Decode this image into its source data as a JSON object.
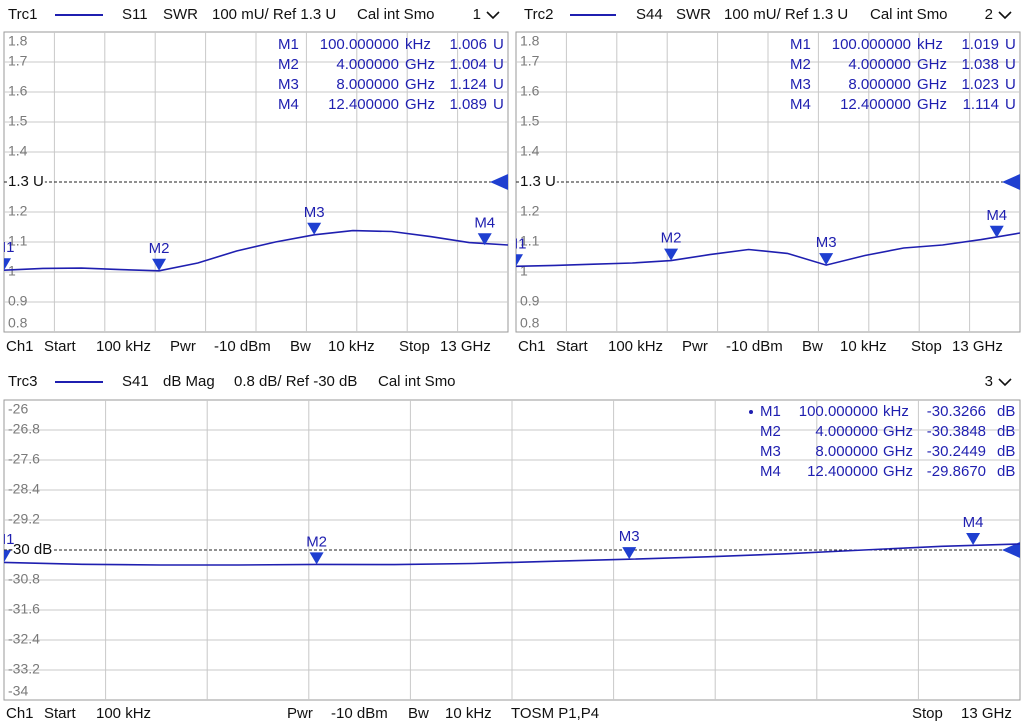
{
  "chart_data": [
    {
      "type": "line",
      "parameter": "S11",
      "format": "SWR",
      "scale": "100 mU/ Ref 1.3 U",
      "calibration": "Cal int Smo",
      "channel_number": "1",
      "x": [
        0.0001,
        1,
        2,
        3,
        4,
        5,
        6,
        7,
        8,
        9,
        10,
        11,
        12,
        13
      ],
      "xlim": [
        0.0001,
        13
      ],
      "ylim": [
        0.8,
        1.8
      ],
      "yticks": [
        0.8,
        0.9,
        1,
        1.1,
        1.2,
        {
          "value": 1.3,
          "label": "1.3 U"
        },
        1.4,
        1.5,
        1.6,
        1.7,
        1.8
      ],
      "grid": true,
      "series": [
        {
          "name": "Trc1",
          "color": "#1f1fb0",
          "values": [
            1.006,
            1.012,
            1.013,
            1.008,
            1.004,
            1.03,
            1.07,
            1.1,
            1.124,
            1.138,
            1.135,
            1.118,
            1.098,
            1.09
          ]
        }
      ],
      "markers": [
        {
          "name": "M1",
          "x": 0.0001,
          "x_label": "100.000000",
          "x_unit": "kHz",
          "value": 1.006,
          "unit": "U"
        },
        {
          "name": "M2",
          "x": 4,
          "x_label": "4.000000",
          "x_unit": "GHz",
          "value": 1.004,
          "unit": "U"
        },
        {
          "name": "M3",
          "x": 8,
          "x_label": "8.000000",
          "x_unit": "GHz",
          "value": 1.124,
          "unit": "U"
        },
        {
          "name": "M4",
          "x": 12.4,
          "x_label": "12.400000",
          "x_unit": "GHz",
          "value": 1.089,
          "unit": "U"
        }
      ],
      "footer": [
        "Ch1",
        "Start",
        "100 kHz",
        "Pwr",
        "-10 dBm",
        "Bw",
        "10 kHz",
        "Stop",
        "13 GHz"
      ]
    },
    {
      "type": "line",
      "parameter": "S44",
      "format": "SWR",
      "scale": "100 mU/ Ref 1.3 U",
      "calibration": "Cal int Smo",
      "channel_number": "2",
      "x": [
        0.0001,
        1,
        2,
        3,
        4,
        5,
        6,
        7,
        8,
        9,
        10,
        11,
        12,
        13
      ],
      "xlim": [
        0.0001,
        13
      ],
      "ylim": [
        0.8,
        1.8
      ],
      "yticks": [
        0.8,
        0.9,
        1,
        1.1,
        1.2,
        {
          "value": 1.3,
          "label": "1.3 U"
        },
        1.4,
        1.5,
        1.6,
        1.7,
        1.8
      ],
      "grid": true,
      "series": [
        {
          "name": "Trc2",
          "color": "#1f1fb0",
          "values": [
            1.019,
            1.022,
            1.026,
            1.03,
            1.038,
            1.058,
            1.075,
            1.062,
            1.023,
            1.055,
            1.08,
            1.09,
            1.108,
            1.13
          ]
        }
      ],
      "markers": [
        {
          "name": "M1",
          "x": 0.0001,
          "x_label": "100.000000",
          "x_unit": "kHz",
          "value": 1.019,
          "unit": "U"
        },
        {
          "name": "M2",
          "x": 4,
          "x_label": "4.000000",
          "x_unit": "GHz",
          "value": 1.038,
          "unit": "U"
        },
        {
          "name": "M3",
          "x": 8,
          "x_label": "8.000000",
          "x_unit": "GHz",
          "value": 1.023,
          "unit": "U"
        },
        {
          "name": "M4",
          "x": 12.4,
          "x_label": "12.400000",
          "x_unit": "GHz",
          "value": 1.114,
          "unit": "U"
        }
      ],
      "footer": [
        "Ch1",
        "Start",
        "100 kHz",
        "Pwr",
        "-10 dBm",
        "Bw",
        "10 kHz",
        "Stop",
        "13 GHz"
      ]
    },
    {
      "type": "line",
      "parameter": "S41",
      "format": "dB Mag",
      "scale": "0.8 dB/ Ref -30 dB",
      "calibration": "Cal int Smo",
      "channel_number": "3",
      "x": [
        0.0001,
        1,
        2,
        3,
        4,
        5,
        6,
        7,
        8,
        9,
        10,
        11,
        12,
        13
      ],
      "xlim": [
        0.0001,
        13
      ],
      "ylim": [
        -34,
        -26
      ],
      "yticks": [
        -34,
        -33.2,
        -32.4,
        -31.6,
        -30.8,
        {
          "value": -30,
          "label": "-30 dB"
        },
        -29.2,
        -28.4,
        -27.6,
        -26.8,
        -26
      ],
      "grid": true,
      "series": [
        {
          "name": "Trc3",
          "color": "#1f1fb0",
          "values": [
            -30.33,
            -30.38,
            -30.4,
            -30.4,
            -30.385,
            -30.39,
            -30.36,
            -30.3,
            -30.245,
            -30.18,
            -30.1,
            -30.0,
            -29.9,
            -29.84
          ]
        }
      ],
      "markers": [
        {
          "name": "M1",
          "x": 0.0001,
          "x_label": "100.000000",
          "x_unit": "kHz",
          "value": -30.3266,
          "unit": "dB"
        },
        {
          "name": "M2",
          "x": 4,
          "x_label": "4.000000",
          "x_unit": "GHz",
          "value": -30.3848,
          "unit": "dB"
        },
        {
          "name": "M3",
          "x": 8,
          "x_label": "8.000000",
          "x_unit": "GHz",
          "value": -30.2449,
          "unit": "dB"
        },
        {
          "name": "M4",
          "x": 12.4,
          "x_label": "12.400000",
          "x_unit": "GHz",
          "value": -29.867,
          "value_label": "-29.8670",
          "unit": "dB"
        }
      ],
      "footer": [
        "Ch1",
        "Start",
        "100 kHz",
        "Pwr",
        "-10 dBm",
        "Bw",
        "10 kHz",
        "TOSM P1,P4",
        "Stop",
        "13 GHz"
      ]
    }
  ]
}
